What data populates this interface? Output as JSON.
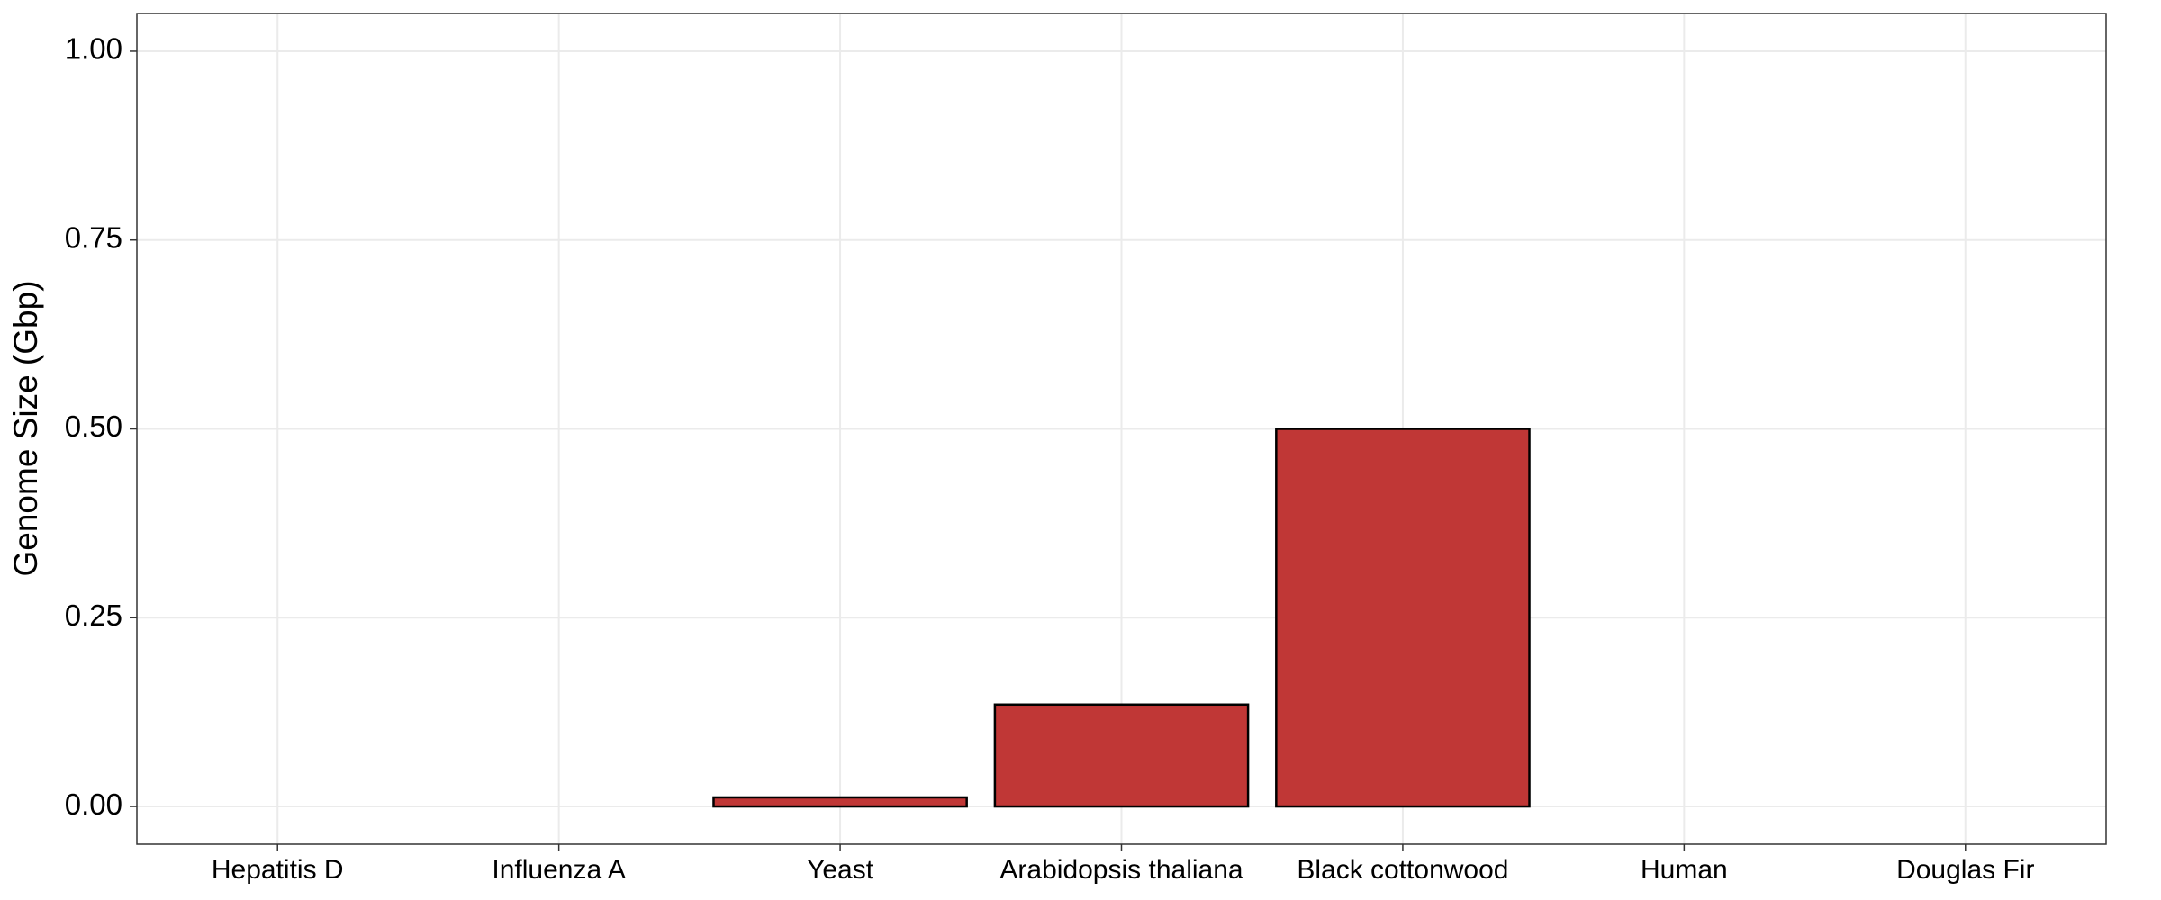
{
  "chart_data": {
    "type": "bar",
    "y_label": "Genome Size (Gbp)",
    "categories": [
      "Hepatitis D",
      "Influenza A",
      "Yeast",
      "Arabidopsis thaliana",
      "Black cottonwood",
      "Human",
      "Douglas Fir"
    ],
    "values": [
      0,
      0,
      0.012,
      0.135,
      0.5,
      null,
      null
    ],
    "color": "#c03736",
    "ylim": [
      -0.05,
      1.05
    ],
    "yticks": [
      {
        "value": 0,
        "label": "0.00"
      },
      {
        "value": 0.25,
        "label": "0.25"
      },
      {
        "value": 0.5,
        "label": "0.50"
      },
      {
        "value": 0.75,
        "label": "0.75"
      },
      {
        "value": 1,
        "label": "1.00"
      }
    ],
    "grid": true
  }
}
